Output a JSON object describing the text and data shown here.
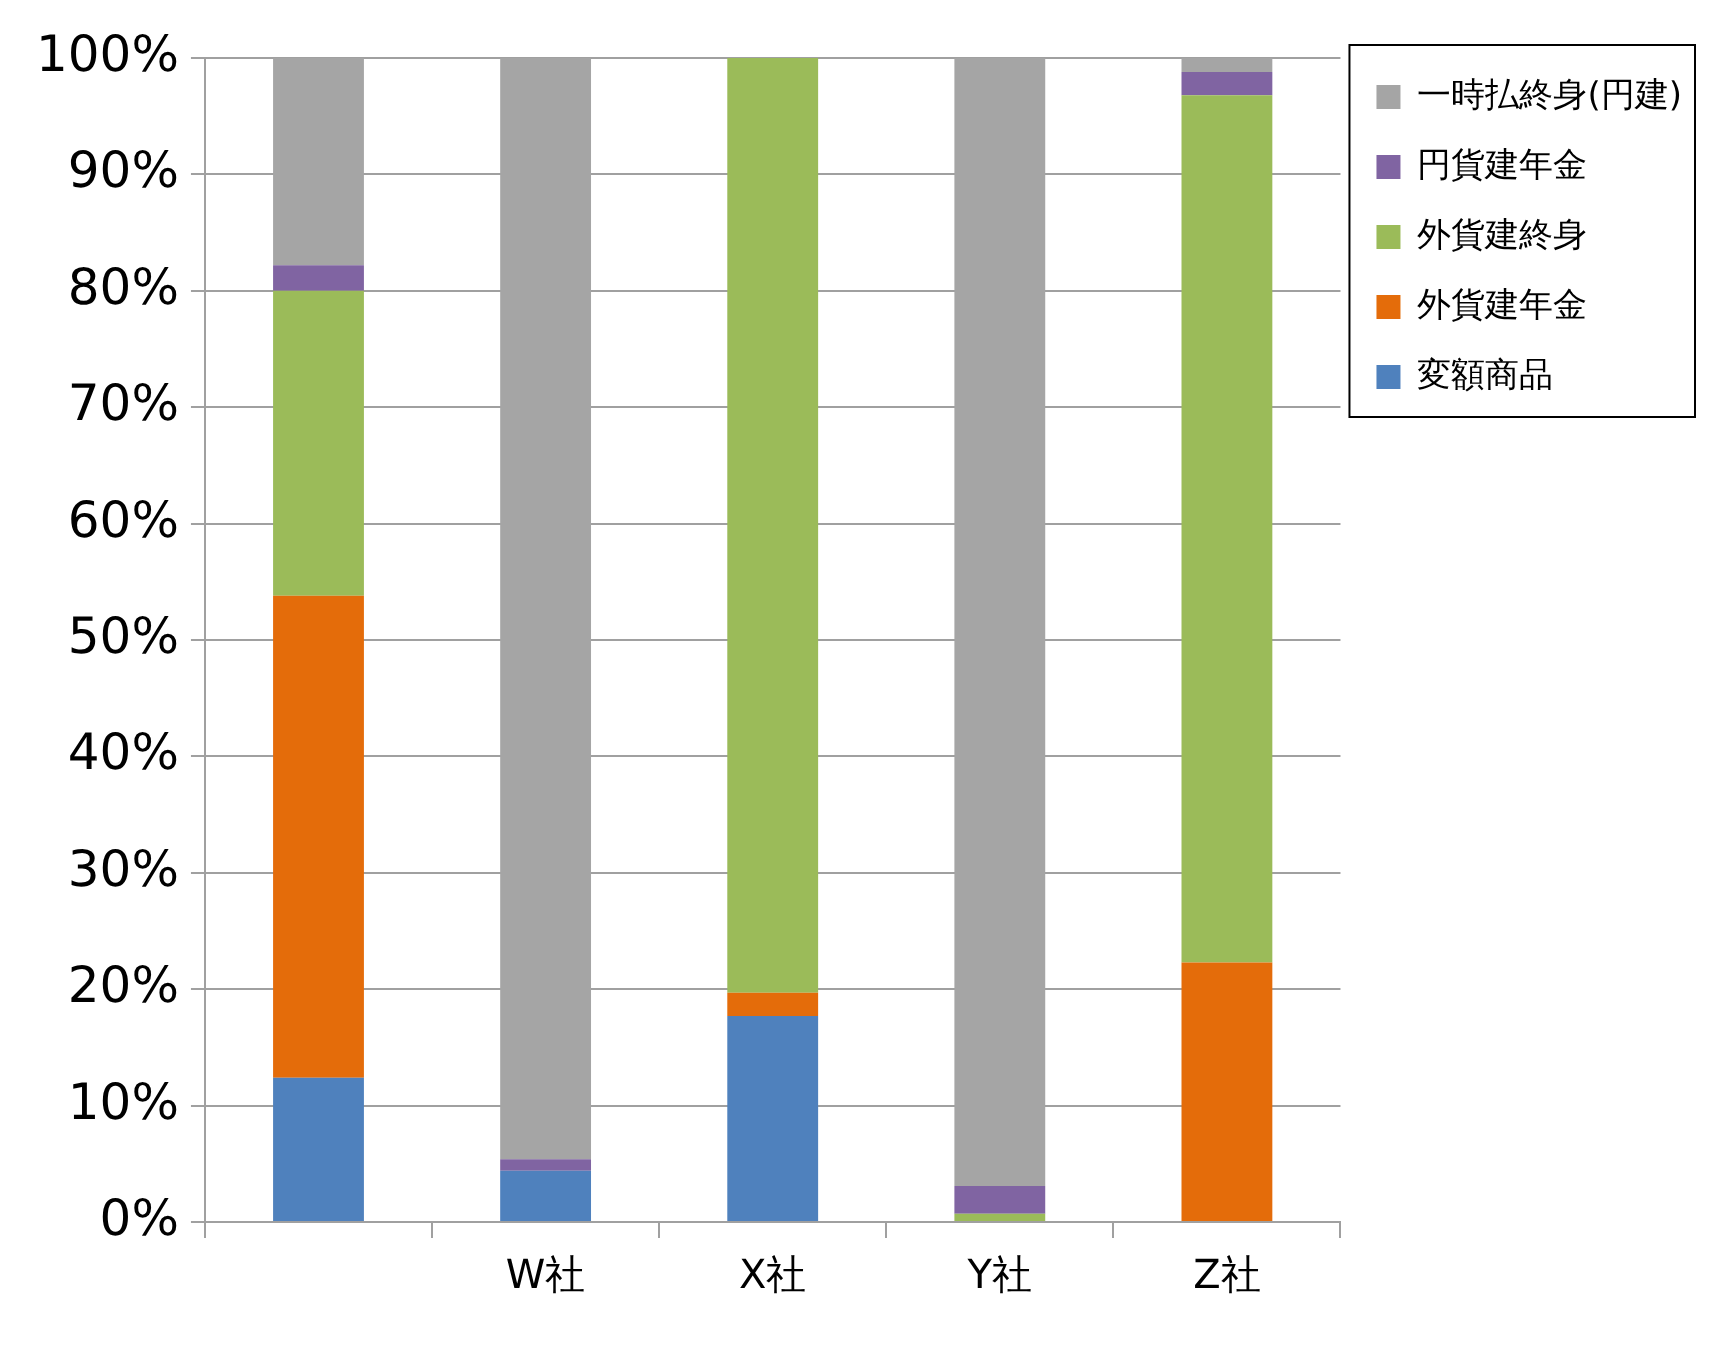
{
  "chart_data": {
    "type": "bar",
    "stacked": true,
    "categories": [
      null,
      "W社",
      "X社",
      "Y社",
      "Z社"
    ],
    "series": [
      {
        "name": "変額商品",
        "color": "#4f81bd",
        "values": [
          12.4,
          4.4,
          17.7,
          0,
          0
        ]
      },
      {
        "name": "外貨建年金",
        "color": "#e46c0a",
        "values": [
          41.4,
          0,
          2.0,
          0,
          22.3
        ]
      },
      {
        "name": "外貨建終身",
        "color": "#9bbb59",
        "values": [
          26.2,
          0,
          80.3,
          0.7,
          74.5
        ]
      },
      {
        "name": "円貨建年金",
        "color": "#8064a2",
        "values": [
          2.2,
          1.0,
          0,
          2.4,
          2.0
        ]
      },
      {
        "name": "一時払終身(円建)",
        "color": "#a5a5a5",
        "values": [
          17.8,
          94.6,
          0,
          96.9,
          1.2
        ]
      }
    ],
    "ylim": [
      0,
      100
    ],
    "yticks": [
      {
        "value": 0,
        "label": "0%"
      },
      {
        "value": 10,
        "label": "10%"
      },
      {
        "value": 20,
        "label": "20%"
      },
      {
        "value": 30,
        "label": "30%"
      },
      {
        "value": 40,
        "label": "40%"
      },
      {
        "value": 50,
        "label": "50%"
      },
      {
        "value": 60,
        "label": "60%"
      },
      {
        "value": 70,
        "label": "70%"
      },
      {
        "value": 80,
        "label": "80%"
      },
      {
        "value": 90,
        "label": "90%"
      },
      {
        "value": 100,
        "label": "100%"
      }
    ],
    "grid": "y",
    "legend": "right"
  }
}
